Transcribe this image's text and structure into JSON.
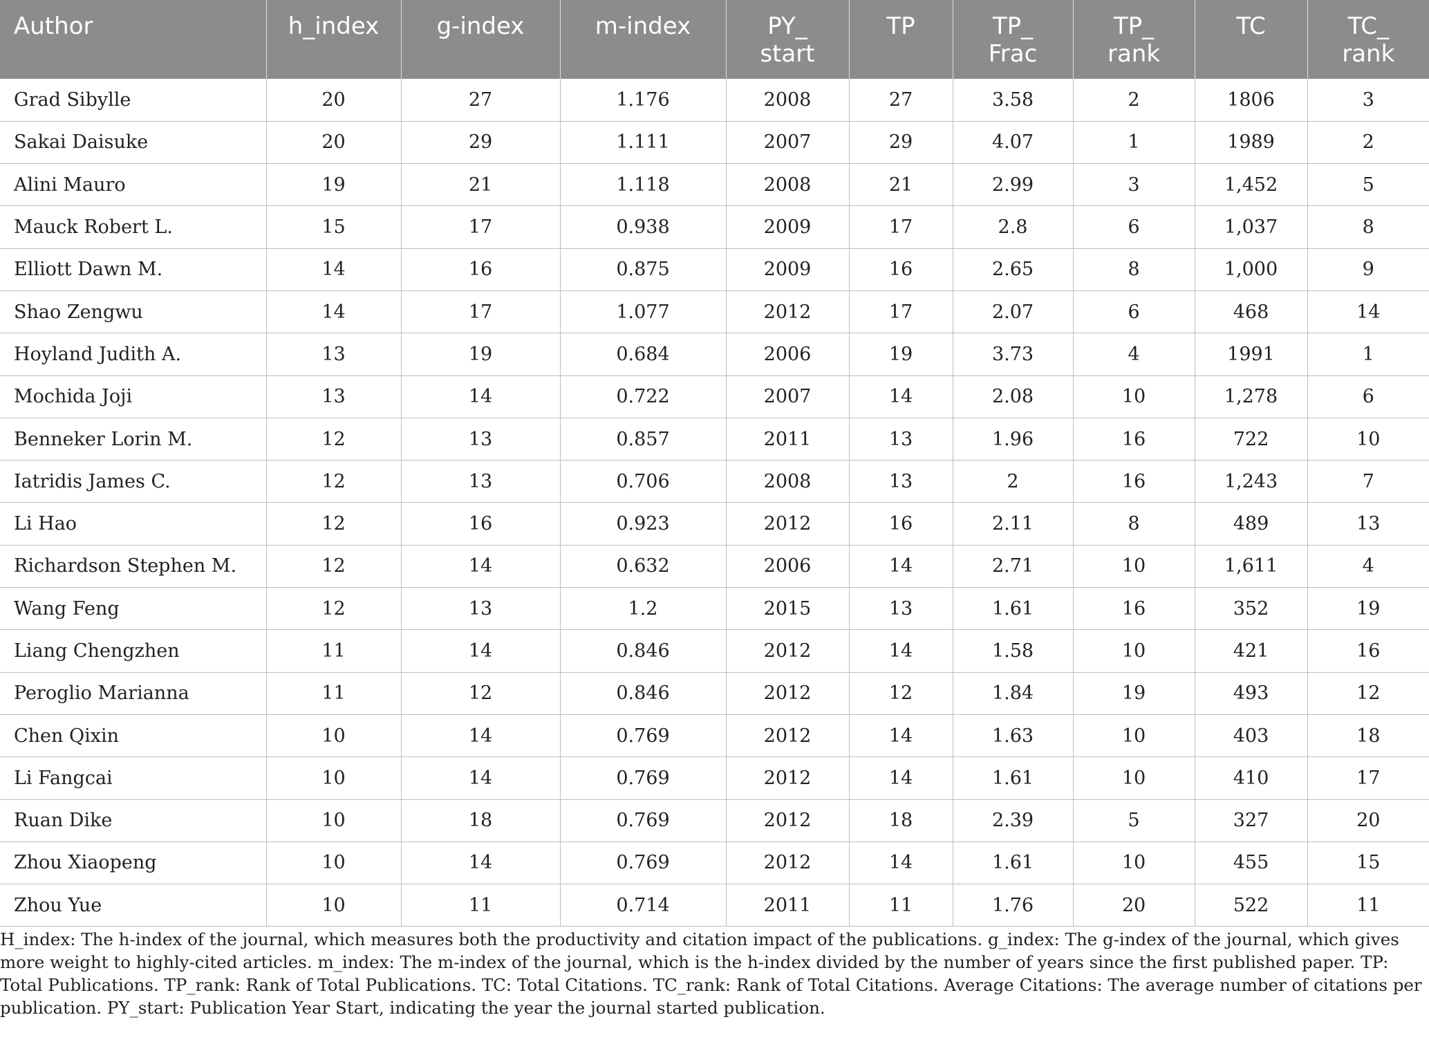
{
  "table": {
    "headers": [
      [
        "Author"
      ],
      [
        "h_index"
      ],
      [
        "g-index"
      ],
      [
        "m-index"
      ],
      [
        "PY_",
        "start"
      ],
      [
        "TP"
      ],
      [
        "TP_",
        "Frac"
      ],
      [
        "TP_",
        "rank"
      ],
      [
        "TC"
      ],
      [
        "TC_",
        "rank"
      ]
    ],
    "rows": [
      [
        "Grad Sibylle",
        "20",
        "27",
        "1.176",
        "2008",
        "27",
        "3.58",
        "2",
        "1806",
        "3"
      ],
      [
        "Sakai Daisuke",
        "20",
        "29",
        "1.111",
        "2007",
        "29",
        "4.07",
        "1",
        "1989",
        "2"
      ],
      [
        "Alini Mauro",
        "19",
        "21",
        "1.118",
        "2008",
        "21",
        "2.99",
        "3",
        "1,452",
        "5"
      ],
      [
        "Mauck Robert L.",
        "15",
        "17",
        "0.938",
        "2009",
        "17",
        "2.8",
        "6",
        "1,037",
        "8"
      ],
      [
        "Elliott Dawn M.",
        "14",
        "16",
        "0.875",
        "2009",
        "16",
        "2.65",
        "8",
        "1,000",
        "9"
      ],
      [
        "Shao Zengwu",
        "14",
        "17",
        "1.077",
        "2012",
        "17",
        "2.07",
        "6",
        "468",
        "14"
      ],
      [
        "Hoyland Judith A.",
        "13",
        "19",
        "0.684",
        "2006",
        "19",
        "3.73",
        "4",
        "1991",
        "1"
      ],
      [
        "Mochida Joji",
        "13",
        "14",
        "0.722",
        "2007",
        "14",
        "2.08",
        "10",
        "1,278",
        "6"
      ],
      [
        "Benneker Lorin M.",
        "12",
        "13",
        "0.857",
        "2011",
        "13",
        "1.96",
        "16",
        "722",
        "10"
      ],
      [
        "Iatridis James C.",
        "12",
        "13",
        "0.706",
        "2008",
        "13",
        "2",
        "16",
        "1,243",
        "7"
      ],
      [
        "Li Hao",
        "12",
        "16",
        "0.923",
        "2012",
        "16",
        "2.11",
        "8",
        "489",
        "13"
      ],
      [
        "Richardson Stephen M.",
        "12",
        "14",
        "0.632",
        "2006",
        "14",
        "2.71",
        "10",
        "1,611",
        "4"
      ],
      [
        "Wang Feng",
        "12",
        "13",
        "1.2",
        "2015",
        "13",
        "1.61",
        "16",
        "352",
        "19"
      ],
      [
        "Liang Chengzhen",
        "11",
        "14",
        "0.846",
        "2012",
        "14",
        "1.58",
        "10",
        "421",
        "16"
      ],
      [
        "Peroglio Marianna",
        "11",
        "12",
        "0.846",
        "2012",
        "12",
        "1.84",
        "19",
        "493",
        "12"
      ],
      [
        "Chen Qixin",
        "10",
        "14",
        "0.769",
        "2012",
        "14",
        "1.63",
        "10",
        "403",
        "18"
      ],
      [
        "Li Fangcai",
        "10",
        "14",
        "0.769",
        "2012",
        "14",
        "1.61",
        "10",
        "410",
        "17"
      ],
      [
        "Ruan Dike",
        "10",
        "18",
        "0.769",
        "2012",
        "18",
        "2.39",
        "5",
        "327",
        "20"
      ],
      [
        "Zhou Xiaopeng",
        "10",
        "14",
        "0.769",
        "2012",
        "14",
        "1.61",
        "10",
        "455",
        "15"
      ],
      [
        "Zhou Yue",
        "10",
        "11",
        "0.714",
        "2011",
        "11",
        "1.76",
        "20",
        "522",
        "11"
      ]
    ]
  },
  "footnote": "H_index: The h-index of the journal, which measures both the productivity and citation impact of the publications. g_index: The g-index of the journal, which gives more weight to highly-cited articles. m_index: The m-index of the journal, which is the h-index divided by the number of years since the first published paper. TP: Total Publications. TP_rank: Rank of Total Publications. TC: Total Citations. TC_rank: Rank of Total Citations. Average Citations: The average number of citations per publication. PY_start: Publication Year Start, indicating the year the journal started publication.",
  "colors": {
    "header_bg": "#8c8c8c",
    "header_text": "#ffffff",
    "grid": "#bdbdbd"
  }
}
